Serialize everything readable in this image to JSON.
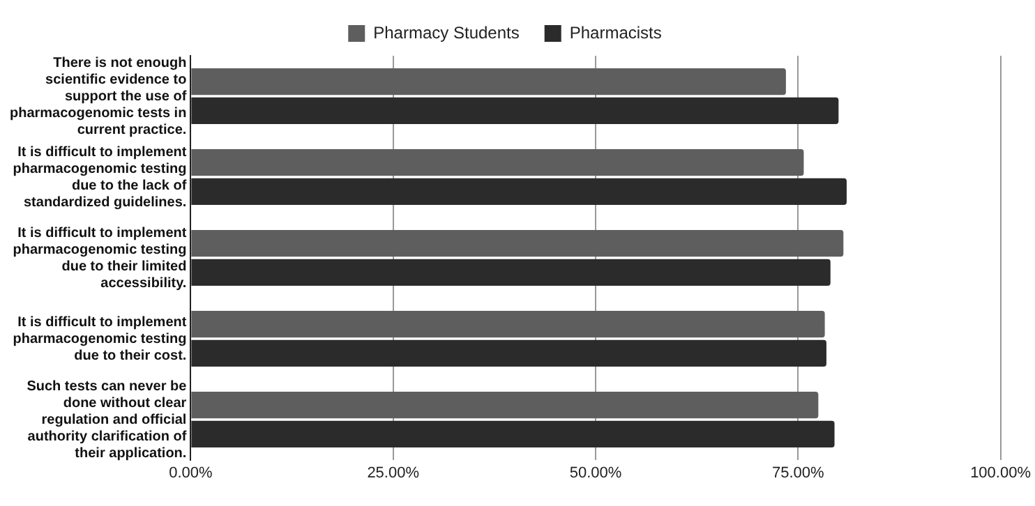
{
  "chart_data": {
    "type": "bar",
    "orientation": "horizontal",
    "categories": [
      "There is not enough scientific evidence to support the use of pharmacogenomic tests in current practice.",
      "It is difficult to implement pharmacogenomic testing due to the lack of standardized guidelines.",
      "It is difficult to implement pharmacogenomic testing due to their limited accessibility.",
      "It is difficult to implement pharmacogenomic testing due to their cost.",
      "Such tests can never be done without clear regulation and official authority clarification of their application."
    ],
    "series": [
      {
        "name": "Pharmacy Students",
        "color": "#5e5e5e",
        "values": [
          73.5,
          75.7,
          80.6,
          78.3,
          77.5
        ]
      },
      {
        "name": "Pharmacists",
        "color": "#2b2b2b",
        "values": [
          80.0,
          81.0,
          79.0,
          78.5,
          79.5
        ]
      }
    ],
    "xlim": [
      0,
      100
    ],
    "xticks": [
      {
        "value": 0,
        "label": "0.00%"
      },
      {
        "value": 25,
        "label": "25.00%"
      },
      {
        "value": 50,
        "label": "50.00%"
      },
      {
        "value": 75,
        "label": "75.00%"
      },
      {
        "value": 100,
        "label": "100.00%"
      }
    ],
    "grid": "x",
    "legend": "top"
  }
}
